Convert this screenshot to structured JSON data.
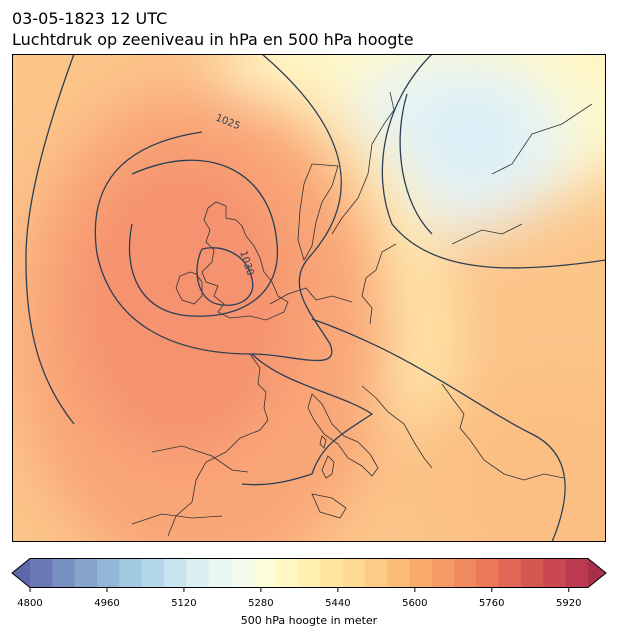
{
  "title_line1": "03-05-1823 12 UTC",
  "title_line2": "Luchtdruk op zeeniveau in hPa en 500 hPa hoogte",
  "map": {
    "isobar_labels": [
      "1025",
      "1030"
    ],
    "isobar_color": "#2b3f55",
    "coast_color": "#333333"
  },
  "colorbar": {
    "label": "500 hPa hoogte in meter",
    "min": 4800,
    "max": 5960,
    "step": 40,
    "ticks": [
      "4800",
      "4960",
      "5120",
      "5280",
      "5440",
      "5600",
      "5760",
      "5920"
    ],
    "colors": [
      "#5e66aa",
      "#6a79b5",
      "#7890c1",
      "#85a3cb",
      "#92b6d6",
      "#a2c9e2",
      "#b4d7ea",
      "#c7e4ef",
      "#d9eff3",
      "#e9f6f2",
      "#f3faeb",
      "#fbfcd9",
      "#fff7c4",
      "#ffefb0",
      "#ffe5a0",
      "#fed993",
      "#fdcb85",
      "#fcbc79",
      "#f9ab6e",
      "#f79a66",
      "#f1895f",
      "#ea7859",
      "#e06755",
      "#d55752",
      "#c94851",
      "#bc3a51",
      "#a9304d"
    ]
  }
}
